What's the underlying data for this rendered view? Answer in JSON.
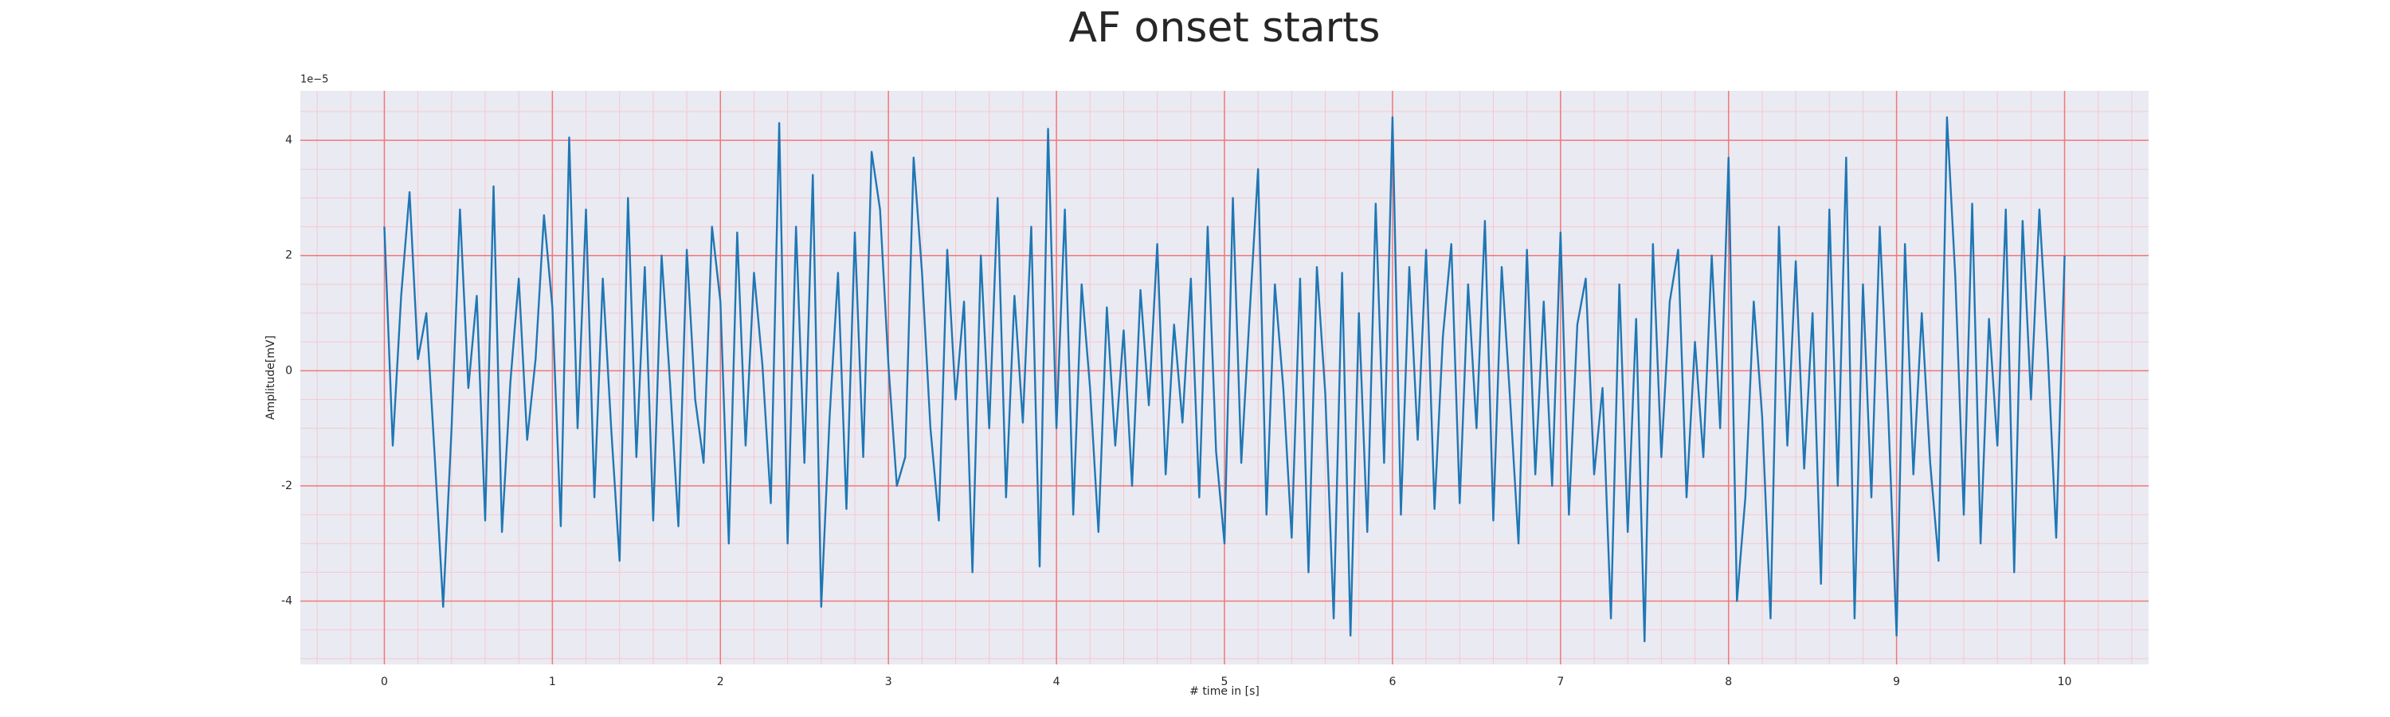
{
  "chart_data": {
    "type": "line",
    "title": "AF onset starts",
    "xlabel": "# time in [s]",
    "ylabel": "Amplitude[mV]",
    "y_offset_label": "1e−5",
    "xlim": [
      -0.5,
      10.5
    ],
    "ylim": [
      -5.1,
      4.86
    ],
    "xticks": [
      0,
      1,
      2,
      3,
      4,
      5,
      6,
      7,
      8,
      9,
      10
    ],
    "yticks": [
      -4,
      -2,
      0,
      2,
      4
    ],
    "xminorticks": [
      -0.4,
      -0.2,
      0.2,
      0.4,
      0.6,
      0.8,
      1.2,
      1.4,
      1.6,
      1.8,
      2.2,
      2.4,
      2.6,
      2.8,
      3.2,
      3.4,
      3.6,
      3.8,
      4.2,
      4.4,
      4.6,
      4.8,
      5.2,
      5.4,
      5.6,
      5.8,
      6.2,
      6.4,
      6.6,
      6.8,
      7.2,
      7.4,
      7.6,
      7.8,
      8.2,
      8.4,
      8.6,
      8.8,
      9.2,
      9.4,
      9.6,
      9.8,
      10.2,
      10.4
    ],
    "yminorticks": [
      -5,
      -4.5,
      -3.5,
      -3,
      -2.5,
      -1.5,
      -1,
      -0.5,
      0.5,
      1,
      1.5,
      2.5,
      3,
      3.5,
      4.5
    ],
    "grid": true,
    "minor_grid": true,
    "background": "#eaeaf2",
    "grid_color": "#f07878",
    "minor_grid_color": "#f6c8cf",
    "x": [
      0,
      0.05,
      0.1,
      0.15,
      0.2,
      0.25,
      0.3,
      0.35,
      0.4,
      0.45,
      0.5,
      0.55,
      0.6,
      0.65,
      0.7,
      0.75,
      0.8,
      0.85,
      0.9,
      0.95,
      1,
      1.05,
      1.1,
      1.15,
      1.2,
      1.25,
      1.3,
      1.35,
      1.4,
      1.45,
      1.5,
      1.55,
      1.6,
      1.65,
      1.7,
      1.75,
      1.8,
      1.85,
      1.9,
      1.95,
      2,
      2.05,
      2.1,
      2.15,
      2.2,
      2.25,
      2.3,
      2.35,
      2.4,
      2.45,
      2.5,
      2.55,
      2.6,
      2.65,
      2.7,
      2.75,
      2.8,
      2.85,
      2.9,
      2.95,
      3,
      3.05,
      3.1,
      3.15,
      3.2,
      3.25,
      3.3,
      3.35,
      3.4,
      3.45,
      3.5,
      3.55,
      3.6,
      3.65,
      3.7,
      3.75,
      3.8,
      3.85,
      3.9,
      3.95,
      4,
      4.05,
      4.1,
      4.15,
      4.2,
      4.25,
      4.3,
      4.35,
      4.4,
      4.45,
      4.5,
      4.55,
      4.6,
      4.65,
      4.7,
      4.75,
      4.8,
      4.85,
      4.9,
      4.95,
      5,
      5.05,
      5.1,
      5.15,
      5.2,
      5.25,
      5.3,
      5.35,
      5.4,
      5.45,
      5.5,
      5.55,
      5.6,
      5.65,
      5.7,
      5.75,
      5.8,
      5.85,
      5.9,
      5.95,
      6,
      6.05,
      6.1,
      6.15,
      6.2,
      6.25,
      6.3,
      6.35,
      6.4,
      6.45,
      6.5,
      6.55,
      6.6,
      6.65,
      6.7,
      6.75,
      6.8,
      6.85,
      6.9,
      6.95,
      7,
      7.05,
      7.1,
      7.15,
      7.2,
      7.25,
      7.3,
      7.35,
      7.4,
      7.45,
      7.5,
      7.55,
      7.6,
      7.65,
      7.7,
      7.75,
      7.8,
      7.85,
      7.9,
      7.95,
      8,
      8.05,
      8.1,
      8.15,
      8.2,
      8.25,
      8.3,
      8.35,
      8.4,
      8.45,
      8.5,
      8.55,
      8.6,
      8.65,
      8.7,
      8.75,
      8.8,
      8.85,
      8.9,
      8.95,
      9,
      9.05,
      9.1,
      9.15,
      9.2,
      9.25,
      9.3,
      9.35,
      9.4,
      9.45,
      9.5,
      9.55,
      9.6,
      9.65,
      9.7,
      9.75,
      9.8,
      9.85,
      9.9,
      9.95,
      10
    ],
    "series": [
      {
        "color": "#1f77b4",
        "values": [
          2.5,
          -1.3,
          1.3,
          3.1,
          0.2,
          1.0,
          -1.5,
          -4.1,
          -1.0,
          2.8,
          -0.3,
          1.3,
          -2.6,
          3.2,
          -2.8,
          -0.2,
          1.6,
          -1.2,
          0.2,
          2.7,
          1.1,
          -2.7,
          4.05,
          -1.0,
          2.8,
          -2.2,
          1.6,
          -1.0,
          -3.3,
          3.0,
          -1.5,
          1.8,
          -2.6,
          2.0,
          -0.2,
          -2.7,
          2.1,
          -0.5,
          -1.6,
          2.5,
          1.2,
          -3.0,
          2.4,
          -1.3,
          1.7,
          0.1,
          -2.3,
          4.3,
          -3.0,
          2.5,
          -1.6,
          3.4,
          -4.1,
          -0.8,
          1.7,
          -2.4,
          2.4,
          -1.5,
          3.8,
          2.8,
          0.1,
          -2.0,
          -1.5,
          3.7,
          1.7,
          -1.0,
          -2.6,
          2.1,
          -0.5,
          1.2,
          -3.5,
          2.0,
          -1.0,
          3.0,
          -2.2,
          1.3,
          -0.9,
          2.5,
          -3.4,
          4.2,
          -1.0,
          2.8,
          -2.5,
          1.5,
          -0.3,
          -2.8,
          1.1,
          -1.3,
          0.7,
          -2.0,
          1.4,
          -0.6,
          2.2,
          -1.8,
          0.8,
          -0.9,
          1.6,
          -2.2,
          2.5,
          -1.4,
          -3.0,
          3.0,
          -1.6,
          1.0,
          3.5,
          -2.5,
          1.5,
          -0.3,
          -2.9,
          1.6,
          -3.5,
          1.8,
          -0.4,
          -4.3,
          1.7,
          -4.6,
          1.0,
          -2.8,
          2.9,
          -1.6,
          4.4,
          -2.5,
          1.8,
          -1.2,
          2.1,
          -2.4,
          0.6,
          2.2,
          -2.3,
          1.5,
          -1.0,
          2.6,
          -2.6,
          1.8,
          -0.5,
          -3.0,
          2.1,
          -1.8,
          1.2,
          -2.0,
          2.4,
          -2.5,
          0.8,
          1.6,
          -1.8,
          -0.3,
          -4.3,
          1.5,
          -2.8,
          0.9,
          -4.7,
          2.2,
          -1.5,
          1.2,
          2.1,
          -2.2,
          0.5,
          -1.5,
          2.0,
          -1.0,
          3.7,
          -4.0,
          -2.2,
          1.2,
          -0.8,
          -4.3,
          2.5,
          -1.3,
          1.9,
          -1.7,
          1.0,
          -3.7,
          2.8,
          -2.0,
          3.7,
          -4.3,
          1.5,
          -2.2,
          2.5,
          -0.7,
          -4.6,
          2.2,
          -1.8,
          1.0,
          -1.6,
          -3.3,
          4.4,
          1.6,
          -2.5,
          2.9,
          -3.0,
          0.9,
          -1.3,
          2.8,
          -3.5,
          2.6,
          -0.5,
          2.8,
          0.3,
          -2.9,
          2.0
        ]
      }
    ]
  }
}
